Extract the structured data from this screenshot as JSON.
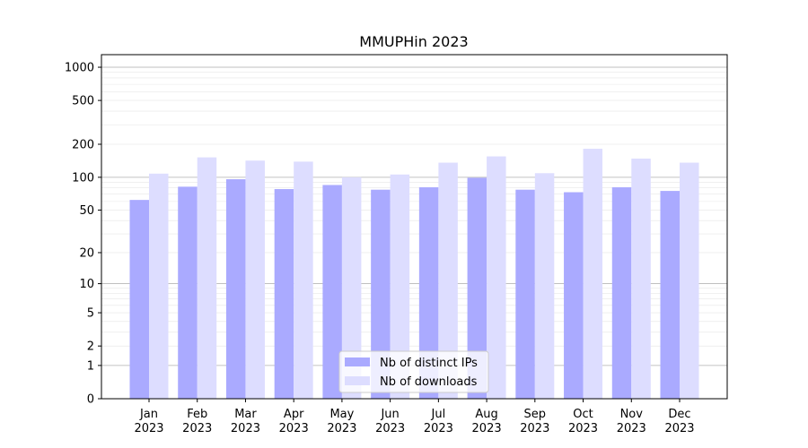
{
  "chart_data": {
    "type": "bar",
    "title": "MMUPHin 2023",
    "xlabel": "",
    "ylabel": "",
    "yscale": "symlog",
    "ylim": [
      0,
      1300
    ],
    "yticks": [
      {
        "value": 0,
        "label": "0"
      },
      {
        "value": 1,
        "label": "1"
      },
      {
        "value": 2,
        "label": "2"
      },
      {
        "value": 5,
        "label": "5"
      },
      {
        "value": 10,
        "label": "10"
      },
      {
        "value": 20,
        "label": "20"
      },
      {
        "value": 50,
        "label": "50"
      },
      {
        "value": 100,
        "label": "100"
      },
      {
        "value": 200,
        "label": "200"
      },
      {
        "value": 500,
        "label": "500"
      },
      {
        "value": 1000,
        "label": "1000"
      }
    ],
    "categories": [
      [
        "Jan",
        "2023"
      ],
      [
        "Feb",
        "2023"
      ],
      [
        "Mar",
        "2023"
      ],
      [
        "Apr",
        "2023"
      ],
      [
        "May",
        "2023"
      ],
      [
        "Jun",
        "2023"
      ],
      [
        "Jul",
        "2023"
      ],
      [
        "Aug",
        "2023"
      ],
      [
        "Sep",
        "2023"
      ],
      [
        "Oct",
        "2023"
      ],
      [
        "Nov",
        "2023"
      ],
      [
        "Dec",
        "2023"
      ]
    ],
    "series": [
      {
        "name": "Nb of distinct IPs",
        "color": "#aaaaff",
        "values": [
          62,
          82,
          96,
          78,
          85,
          77,
          81,
          99,
          77,
          73,
          81,
          75
        ]
      },
      {
        "name": "Nb of downloads",
        "color": "#ddddff",
        "values": [
          108,
          152,
          142,
          139,
          100,
          106,
          136,
          155,
          109,
          182,
          148,
          136
        ]
      }
    ],
    "grid": true,
    "legend_position": "bottom-center"
  }
}
